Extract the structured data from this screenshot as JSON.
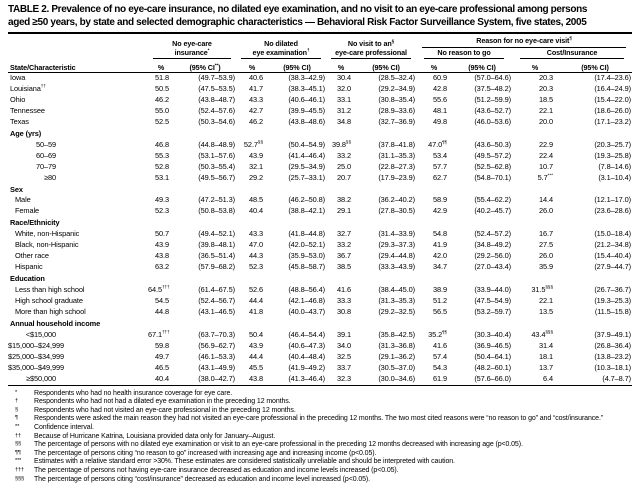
{
  "title": {
    "line1": "TABLE 2. Prevalence of no eye-care insurance, no dilated eye examination, and no visit to an eye-care professional among persons",
    "line2": "aged ≥50 years, by state and selected demographic characteristics — Behavioral Risk Factor Surveillance System, five states, 2005"
  },
  "table": {
    "header": {
      "state_col": "State/Characteristic",
      "group1_l1": "No eye-care",
      "group1_l2": "insurance^{*}",
      "group2_l1": "No dilated",
      "group2_l2": "eye examination^{†}",
      "group3_l1": "No visit to an^{§}",
      "group3_l2": "eye-care professional",
      "reason_label": "Reason for no eye-care visit^{¶}",
      "reason_sub1": "No reason to go",
      "reason_sub2": "Cost/Insurance",
      "pct": "%",
      "ci_first": "(95% CI^{**})",
      "ci": "(95% CI)"
    },
    "rows": [
      {
        "t": "state",
        "label": "Iowa",
        "cells": [
          "51.8",
          "(49.7–53.9)",
          "40.6",
          "(38.3–42.9)",
          "30.4",
          "(28.5–32.4)",
          "60.9",
          "(57.0–64.6)",
          "20.3",
          "(17.4–23.6)"
        ]
      },
      {
        "t": "state",
        "label": "Louisiana^{††}",
        "cells": [
          "50.5",
          "(47.5–53.5)",
          "41.7",
          "(38.3–45.1)",
          "32.0",
          "(29.2–34.9)",
          "42.8",
          "(37.5–48.2)",
          "20.3",
          "(16.4–24.9)"
        ]
      },
      {
        "t": "state",
        "label": "Ohio",
        "cells": [
          "46.2",
          "(43.8–48.7)",
          "43.3",
          "(40.6–46.1)",
          "33.1",
          "(30.8–35.4)",
          "55.6",
          "(51.2–59.9)",
          "18.5",
          "(15.4–22.0)"
        ]
      },
      {
        "t": "state",
        "label": "Tennessee",
        "cells": [
          "55.0",
          "(52.4–57.6)",
          "42.7",
          "(39.9–45.5)",
          "31.2",
          "(28.9–33.6)",
          "48.1",
          "(43.6–52.7)",
          "22.1",
          "(18.6–26.0)"
        ]
      },
      {
        "t": "state",
        "label": "Texas",
        "cells": [
          "52.5",
          "(50.3–54.6)",
          "46.2",
          "(43.8–48.6)",
          "34.8",
          "(32.7–36.9)",
          "49.8",
          "(46.0–53.6)",
          "20.0",
          "(17.1–23.2)"
        ]
      },
      {
        "t": "sec",
        "label": "Age (yrs)"
      },
      {
        "t": "item-r",
        "label": "50–59",
        "cells": [
          "46.8",
          "(44.8–48.9)",
          "52.7^{§§}",
          "(50.4–54.9)",
          "39.8^{§§}",
          "(37.8–41.8)",
          "47.0^{¶¶}",
          "(43.6–50.3)",
          "22.9",
          "(20.3–25.7)"
        ]
      },
      {
        "t": "item-r",
        "label": "60–69",
        "cells": [
          "55.3",
          "(53.1–57.6)",
          "43.9",
          "(41.4–46.4)",
          "33.2",
          "(31.1–35.3)",
          "53.4",
          "(49.5–57.2)",
          "22.4",
          "(19.3–25.8)"
        ]
      },
      {
        "t": "item-r",
        "label": "70–79",
        "cells": [
          "52.8",
          "(50.3–55.4)",
          "32.1",
          "(29.5–34.9)",
          "25.0",
          "(22.8–27.3)",
          "57.7",
          "(52.5–62.8)",
          "10.7",
          "(7.8–14.6)"
        ]
      },
      {
        "t": "item-r",
        "label": "≥80",
        "cells": [
          "53.1",
          "(49.5–56.7)",
          "29.2",
          "(25.7–33.1)",
          "20.7",
          "(17.9–23.9)",
          "62.7",
          "(54.8–70.1)",
          "5.7^{***}",
          "(3.1–10.4)"
        ]
      },
      {
        "t": "sec",
        "label": "Sex"
      },
      {
        "t": "item",
        "label": "Male",
        "cells": [
          "49.3",
          "(47.2–51.3)",
          "48.5",
          "(46.2–50.8)",
          "38.2",
          "(36.2–40.2)",
          "58.9",
          "(55.4–62.2)",
          "14.4",
          "(12.1–17.0)"
        ]
      },
      {
        "t": "item",
        "label": "Female",
        "cells": [
          "52.3",
          "(50.8–53.8)",
          "40.4",
          "(38.8–42.1)",
          "29.1",
          "(27.8–30.5)",
          "42.9",
          "(40.2–45.7)",
          "26.0",
          "(23.6–28.6)"
        ]
      },
      {
        "t": "sec",
        "label": "Race/Ethnicity"
      },
      {
        "t": "item",
        "label": "White, non-Hispanic",
        "cells": [
          "50.7",
          "(49.4–52.1)",
          "43.3",
          "(41.8–44.8)",
          "32.7",
          "(31.4–33.9)",
          "54.8",
          "(52.4–57.2)",
          "16.7",
          "(15.0–18.4)"
        ]
      },
      {
        "t": "item",
        "label": "Black, non-Hispanic",
        "cells": [
          "43.9",
          "(39.8–48.1)",
          "47.0",
          "(42.0–52.1)",
          "33.2",
          "(29.3–37.3)",
          "41.9",
          "(34.8–49.2)",
          "27.5",
          "(21.2–34.8)"
        ]
      },
      {
        "t": "item",
        "label": "Other race",
        "cells": [
          "43.8",
          "(36.5–51.4)",
          "44.3",
          "(35.9–53.0)",
          "36.7",
          "(29.4–44.8)",
          "42.0",
          "(29.2–56.0)",
          "26.0",
          "(15.4–40.4)"
        ]
      },
      {
        "t": "item",
        "label": "Hispanic",
        "cells": [
          "63.2",
          "(57.9–68.2)",
          "52.3",
          "(45.8–58.7)",
          "38.5",
          "(33.3–43.9)",
          "34.7",
          "(27.0–43.4)",
          "35.9",
          "(27.9–44.7)"
        ]
      },
      {
        "t": "sec",
        "label": "Education"
      },
      {
        "t": "item",
        "label": "Less than high school",
        "cells": [
          "64.5^{†††}",
          "(61.4–67.5)",
          "52.6",
          "(48.8–56.4)",
          "41.6",
          "(38.4–45.0)",
          "38.9",
          "(33.9–44.0)",
          "31.5^{§§§}",
          "(26.7–36.7)"
        ]
      },
      {
        "t": "item",
        "label": "High school graduate",
        "cells": [
          "54.5",
          "(52.4–56.7)",
          "44.4",
          "(42.1–46.8)",
          "33.3",
          "(31.3–35.3)",
          "51.2",
          "(47.5–54.9)",
          "22.1",
          "(19.3–25.3)"
        ]
      },
      {
        "t": "item",
        "label": "More than high school",
        "cells": [
          "44.8",
          "(43.1–46.5)",
          "41.8",
          "(40.0–43.7)",
          "30.8",
          "(29.2–32.5)",
          "56.5",
          "(53.2–59.7)",
          "13.5",
          "(11.5–15.8)"
        ]
      },
      {
        "t": "sec",
        "label": "Annual household income"
      },
      {
        "t": "item-r",
        "label": "<$15,000",
        "cells": [
          "67.1^{†††}",
          "(63.7–70.3)",
          "50.4",
          "(46.4–54.4)",
          "39.1",
          "(35.8–42.5)",
          "35.2^{¶¶}",
          "(30.3–40.4)",
          "43.4^{§§§}",
          "(37.9–49.1)"
        ]
      },
      {
        "t": "item-r",
        "label": "$15,000–$24,999",
        "cells": [
          "59.8",
          "(56.9–62.7)",
          "43.9",
          "(40.6–47.3)",
          "34.0",
          "(31.3–36.8)",
          "41.6",
          "(36.9–46.5)",
          "31.4",
          "(26.8–36.4)"
        ]
      },
      {
        "t": "item-r",
        "label": "$25,000–$34,999",
        "cells": [
          "49.7",
          "(46.1–53.3)",
          "44.4",
          "(40.4–48.4)",
          "32.5",
          "(29.1–36.2)",
          "57.4",
          "(50.4–64.1)",
          "18.1",
          "(13.8–23.2)"
        ]
      },
      {
        "t": "item-r",
        "label": "$35,000–$49,999",
        "cells": [
          "46.5",
          "(43.1–49.9)",
          "45.5",
          "(41.9–49.2)",
          "33.7",
          "(30.5–37.0)",
          "54.3",
          "(48.2–60.1)",
          "13.7",
          "(10.3–18.1)"
        ]
      },
      {
        "t": "item-r",
        "label": "≥$50,000",
        "cells": [
          "40.4",
          "(38.0–42.7)",
          "43.8",
          "(41.3–46.4)",
          "32.3",
          "(30.0–34.6)",
          "61.9",
          "(57.6–66.0)",
          "6.4",
          "(4.7–8.7)"
        ]
      }
    ]
  },
  "footnotes": [
    {
      "m": "*",
      "t": "Respondents who had no health insurance coverage for eye care."
    },
    {
      "m": "†",
      "t": "Respondents who had not had a dilated eye examination in the preceding 12 months."
    },
    {
      "m": "§",
      "t": "Respondents who had not visited an eye-care professional in the preceding 12 months."
    },
    {
      "m": "¶",
      "t": "Respondents were asked the main reason they had not visited an eye-care professional in the preceding 12 months. The two most cited reasons were “no reason to go” and “cost/insurance.”"
    },
    {
      "m": "**",
      "t": "Confidence interval."
    },
    {
      "m": "††",
      "t": "Because of Hurricane Katrina, Louisiana provided data only for January–August."
    },
    {
      "m": "§§",
      "t": "The percentage of persons with no dilated eye examination or visit to an eye-care professional in the preceding 12 months decreased with increasing age (p<0.05)."
    },
    {
      "m": "¶¶",
      "t": "The percentage of persons citing “no reason to go” increased with increasing age and increasing income (p<0.05)."
    },
    {
      "m": "***",
      "t": "Estimates with a relative standard error >30%. These estimates are considered statistically unreliable and should be interpreted with caution."
    },
    {
      "m": "†††",
      "t": "The percentage of persons not having eye-care insurance decreased as education and income levels increased (p<0.05)."
    },
    {
      "m": "§§§",
      "t": "The percentage of persons citing “cost/insurance” decreased as education and income level increased (p<0.05)."
    }
  ]
}
